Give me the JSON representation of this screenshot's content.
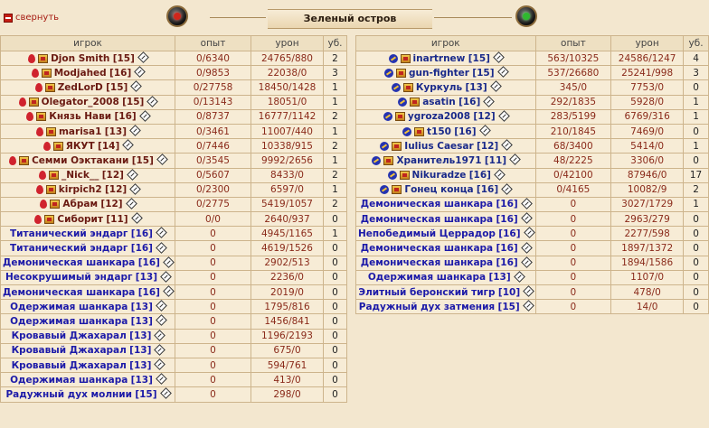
{
  "header": {
    "collapse_label": "свернуть",
    "location": "Зеленый остров"
  },
  "columns": {
    "player": "игрок",
    "exp": "опыт",
    "damage": "урон",
    "kills": "уб."
  },
  "left_team": [
    {
      "name": "Djon Smith",
      "level": "[15]",
      "exp": "0/6340",
      "damage": "24765/880",
      "kills": "2",
      "type": "player"
    },
    {
      "name": "Modjahed",
      "level": "[16]",
      "exp": "0/9853",
      "damage": "22038/0",
      "kills": "3",
      "type": "player"
    },
    {
      "name": "ZedLorD",
      "level": "[15]",
      "exp": "0/27758",
      "damage": "18450/1428",
      "kills": "1",
      "type": "player"
    },
    {
      "name": "Olegator_2008",
      "level": "[15]",
      "exp": "0/13143",
      "damage": "18051/0",
      "kills": "1",
      "type": "player"
    },
    {
      "name": "Князь Нави",
      "level": "[16]",
      "exp": "0/8737",
      "damage": "16777/1142",
      "kills": "2",
      "type": "player"
    },
    {
      "name": "marisa1",
      "level": "[13]",
      "exp": "0/3461",
      "damage": "11007/440",
      "kills": "1",
      "type": "player"
    },
    {
      "name": "ЯКУТ",
      "level": "[14]",
      "exp": "0/7446",
      "damage": "10338/915",
      "kills": "2",
      "type": "player"
    },
    {
      "name": "Семми Оэктакани",
      "level": "[15]",
      "exp": "0/3545",
      "damage": "9992/2656",
      "kills": "1",
      "type": "player"
    },
    {
      "name": "_Nick__",
      "level": "[12]",
      "exp": "0/5607",
      "damage": "8433/0",
      "kills": "2",
      "type": "player"
    },
    {
      "name": "kirpich2",
      "level": "[12]",
      "exp": "0/2300",
      "damage": "6597/0",
      "kills": "1",
      "type": "player"
    },
    {
      "name": "Абрам",
      "level": "[12]",
      "exp": "0/2775",
      "damage": "5419/1057",
      "kills": "2",
      "type": "player"
    },
    {
      "name": "Сиборит",
      "level": "[11]",
      "exp": "0/0",
      "damage": "2640/937",
      "kills": "0",
      "type": "player"
    },
    {
      "name": "Титанический эндарг",
      "level": "[16]",
      "exp": "0",
      "damage": "4945/1165",
      "kills": "1",
      "type": "mob"
    },
    {
      "name": "Титанический эндарг",
      "level": "[16]",
      "exp": "0",
      "damage": "4619/1526",
      "kills": "0",
      "type": "mob"
    },
    {
      "name": "Демоническая шанкара",
      "level": "[16]",
      "exp": "0",
      "damage": "2902/513",
      "kills": "0",
      "type": "mob"
    },
    {
      "name": "Несокрушимый эндарг",
      "level": "[13]",
      "exp": "0",
      "damage": "2236/0",
      "kills": "0",
      "type": "mob"
    },
    {
      "name": "Демоническая шанкара",
      "level": "[16]",
      "exp": "0",
      "damage": "2019/0",
      "kills": "0",
      "type": "mob"
    },
    {
      "name": "Одержимая шанкара",
      "level": "[13]",
      "exp": "0",
      "damage": "1795/816",
      "kills": "0",
      "type": "mob"
    },
    {
      "name": "Одержимая шанкара",
      "level": "[13]",
      "exp": "0",
      "damage": "1456/841",
      "kills": "0",
      "type": "mob"
    },
    {
      "name": "Кровавый Джахарал",
      "level": "[13]",
      "exp": "0",
      "damage": "1196/2193",
      "kills": "0",
      "type": "mob"
    },
    {
      "name": "Кровавый Джахарал",
      "level": "[13]",
      "exp": "0",
      "damage": "675/0",
      "kills": "0",
      "type": "mob"
    },
    {
      "name": "Кровавый Джахарал",
      "level": "[13]",
      "exp": "0",
      "damage": "594/761",
      "kills": "0",
      "type": "mob"
    },
    {
      "name": "Одержимая шанкара",
      "level": "[13]",
      "exp": "0",
      "damage": "413/0",
      "kills": "0",
      "type": "mob"
    },
    {
      "name": "Радужный дух молнии",
      "level": "[15]",
      "exp": "0",
      "damage": "298/0",
      "kills": "0",
      "type": "mob"
    }
  ],
  "right_team": [
    {
      "name": "inartrnew",
      "level": "[15]",
      "exp": "563/10325",
      "damage": "24586/1247",
      "kills": "4",
      "type": "player"
    },
    {
      "name": "gun-fighter",
      "level": "[15]",
      "exp": "537/26680",
      "damage": "25241/998",
      "kills": "3",
      "type": "player"
    },
    {
      "name": "Куркуль",
      "level": "[13]",
      "exp": "345/0",
      "damage": "7753/0",
      "kills": "0",
      "type": "player"
    },
    {
      "name": "asatin",
      "level": "[16]",
      "exp": "292/1835",
      "damage": "5928/0",
      "kills": "1",
      "type": "player"
    },
    {
      "name": "ygroza2008",
      "level": "[12]",
      "exp": "283/5199",
      "damage": "6769/316",
      "kills": "1",
      "type": "player"
    },
    {
      "name": "t150",
      "level": "[16]",
      "exp": "210/1845",
      "damage": "7469/0",
      "kills": "0",
      "type": "player"
    },
    {
      "name": "Iulius Caesar",
      "level": "[12]",
      "exp": "68/3400",
      "damage": "5414/0",
      "kills": "1",
      "type": "player"
    },
    {
      "name": "Хранитель1971",
      "level": "[11]",
      "exp": "48/2225",
      "damage": "3306/0",
      "kills": "0",
      "type": "player"
    },
    {
      "name": "Nikuradze",
      "level": "[16]",
      "exp": "0/42100",
      "damage": "87946/0",
      "kills": "17",
      "type": "player"
    },
    {
      "name": "Гонец конца",
      "level": "[16]",
      "exp": "0/4165",
      "damage": "10082/9",
      "kills": "2",
      "type": "player"
    },
    {
      "name": "Демоническая шанкара",
      "level": "[16]",
      "exp": "0",
      "damage": "3027/1729",
      "kills": "1",
      "type": "mob"
    },
    {
      "name": "Демоническая шанкара",
      "level": "[16]",
      "exp": "0",
      "damage": "2963/279",
      "kills": "0",
      "type": "mob"
    },
    {
      "name": "Непобедимый Церрадор",
      "level": "[16]",
      "exp": "0",
      "damage": "2277/598",
      "kills": "0",
      "type": "mob"
    },
    {
      "name": "Демоническая шанкара",
      "level": "[16]",
      "exp": "0",
      "damage": "1897/1372",
      "kills": "0",
      "type": "mob"
    },
    {
      "name": "Демоническая шанкара",
      "level": "[16]",
      "exp": "0",
      "damage": "1894/1586",
      "kills": "0",
      "type": "mob"
    },
    {
      "name": "Одержимая шанкара",
      "level": "[13]",
      "exp": "0",
      "damage": "1107/0",
      "kills": "0",
      "type": "mob"
    },
    {
      "name": "Элитный беронский тигр",
      "level": "[10]",
      "exp": "0",
      "damage": "478/0",
      "kills": "0",
      "type": "mob"
    },
    {
      "name": "Радужный дух затмения",
      "level": "[15]",
      "exp": "0",
      "damage": "14/0",
      "kills": "0",
      "type": "mob"
    }
  ],
  "colors": {
    "background": "#f3e7cf",
    "player_left": "#6a1a12",
    "player_right": "#1a2a8a",
    "mob": "#1c1aa8",
    "accent": "#c51d12"
  }
}
